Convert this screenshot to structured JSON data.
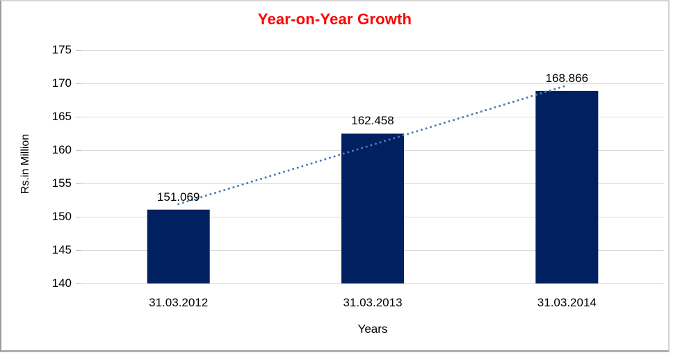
{
  "chart_data": {
    "type": "bar",
    "title": "Year-on-Year Growth",
    "title_color": "#fe0000",
    "xlabel": "Years",
    "ylabel": "Rs.in Million",
    "categories": [
      "31.03.2012",
      "31.03.2013",
      "31.03.2014"
    ],
    "values": [
      151.069,
      162.458,
      168.866
    ],
    "data_labels": [
      "151.069",
      "162.458",
      "168.866"
    ],
    "ylim": [
      140,
      175
    ],
    "yticks": [
      140,
      145,
      150,
      155,
      160,
      165,
      170,
      175
    ],
    "grid": true,
    "legend": false,
    "bar_color": "#002060",
    "gridline_color": "#d9d9d9",
    "tick_color": "#bfbfbf",
    "trendline": {
      "type": "linear",
      "style": "dotted",
      "color": "#4a7ebb"
    }
  }
}
